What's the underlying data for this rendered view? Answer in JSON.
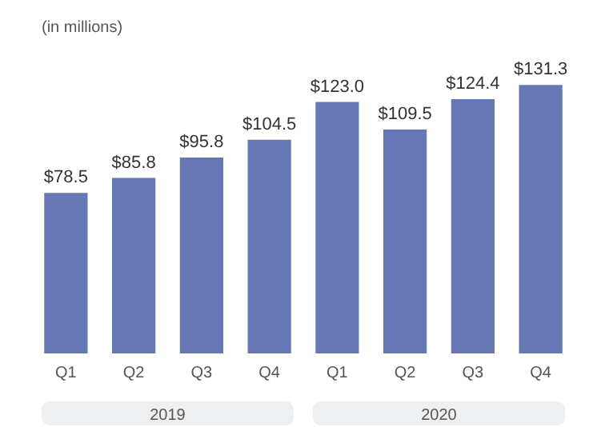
{
  "chart_data": {
    "type": "bar",
    "ylabel": "(in millions)",
    "categories": [
      "Q1",
      "Q2",
      "Q3",
      "Q4",
      "Q1",
      "Q2",
      "Q3",
      "Q4"
    ],
    "values": [
      78.5,
      85.8,
      95.8,
      104.5,
      123.0,
      109.5,
      124.4,
      131.3
    ],
    "value_labels": [
      "$78.5",
      "$85.8",
      "$95.8",
      "$104.5",
      "$123.0",
      "$109.5",
      "$124.4",
      "$131.3"
    ],
    "color": "#6677b5",
    "annotations": [
      "2019",
      "2020"
    ],
    "grid": false,
    "legend": false
  }
}
